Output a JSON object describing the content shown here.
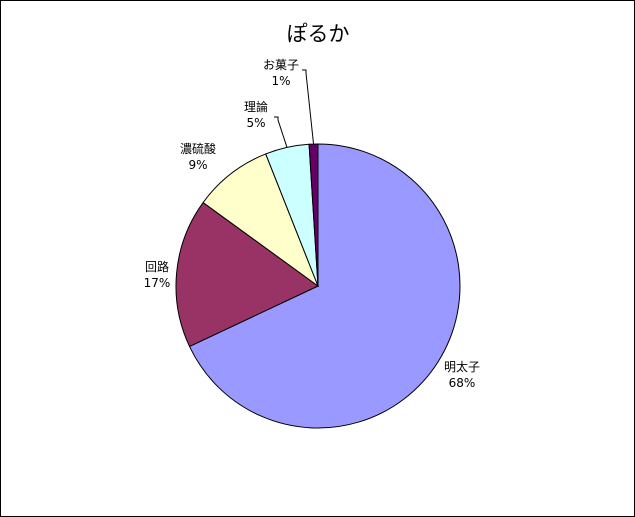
{
  "chart_data": {
    "type": "pie",
    "title": "ぽるか",
    "categories": [
      "明太子",
      "回路",
      "濃硫酸",
      "理論",
      "お菓子"
    ],
    "values": [
      68,
      17,
      9,
      5,
      1
    ],
    "value_labels": [
      "68%",
      "17%",
      "9%",
      "5%",
      "1%"
    ],
    "colors": [
      "#9999FF",
      "#993366",
      "#FFFFCC",
      "#CCFFFF",
      "#660066"
    ],
    "start": "top",
    "direction": "clockwise",
    "legend": "none"
  }
}
